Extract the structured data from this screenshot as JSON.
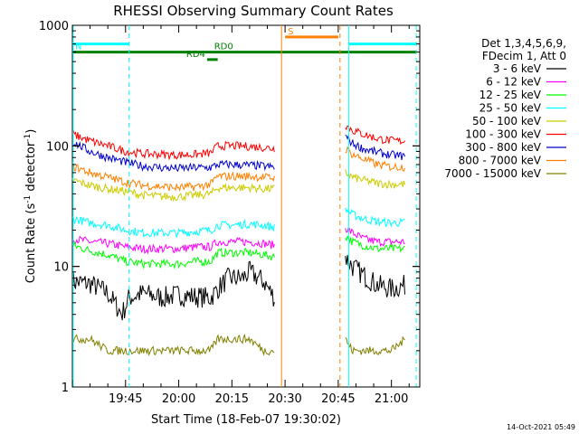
{
  "chart_data": {
    "type": "line",
    "title": "RHESSI Observing Summary Count Rates",
    "xlabel": "Start Time (18-Feb-07 19:30:02)",
    "ylabel_main": "Count Rate (s",
    "ylabel_sup1": "-1",
    "ylabel_mid": " detector",
    "ylabel_sup2": "-1",
    "ylabel_end": ")",
    "y_scale": "log",
    "ylim": [
      1,
      1000
    ],
    "xlim_minutes": [
      1170,
      1268
    ],
    "x_ticks": [
      {
        "label": "19:45",
        "minute": 1185
      },
      {
        "label": "20:00",
        "minute": 1200
      },
      {
        "label": "20:15",
        "minute": 1215
      },
      {
        "label": "20:30",
        "minute": 1230
      },
      {
        "label": "20:45",
        "minute": 1245
      },
      {
        "label": "21:00",
        "minute": 1260
      }
    ],
    "y_ticks": [
      {
        "label": "1",
        "value": 1
      },
      {
        "label": "10",
        "value": 10
      },
      {
        "label": "100",
        "value": 100
      },
      {
        "label": "1000",
        "value": 1000
      }
    ],
    "legend_header": [
      "Det 1,3,4,5,6,9,",
      "FDecim 1, Att 0"
    ],
    "legend_placement": "right",
    "timestamp": "14-Oct-2021 05:49",
    "gap_minutes": [
      1229,
      1246
    ],
    "series": [
      {
        "name": "3 - 6 keV",
        "color": "#000000",
        "pre": [
          [
            1170,
            7.5
          ],
          [
            1175,
            7.2
          ],
          [
            1180,
            6
          ],
          [
            1184,
            4
          ],
          [
            1186,
            5.5
          ],
          [
            1190,
            6
          ],
          [
            1195,
            5.5
          ],
          [
            1200,
            5.8
          ],
          [
            1205,
            5.6
          ],
          [
            1209,
            5.5
          ],
          [
            1211,
            6.5
          ],
          [
            1214,
            8
          ],
          [
            1218,
            8
          ],
          [
            1220,
            9
          ],
          [
            1224,
            7.5
          ],
          [
            1227,
            5.5
          ]
        ],
        "post": [
          [
            1247,
            12
          ],
          [
            1249,
            10
          ],
          [
            1252,
            8.5
          ],
          [
            1256,
            7
          ],
          [
            1260,
            6.5
          ],
          [
            1264,
            7
          ]
        ]
      },
      {
        "name": "6 - 12 keV",
        "color": "#ff00ff",
        "pre": [
          [
            1170,
            17
          ],
          [
            1175,
            16
          ],
          [
            1180,
            15.5
          ],
          [
            1185,
            14.5
          ],
          [
            1190,
            14
          ],
          [
            1195,
            14
          ],
          [
            1200,
            14
          ],
          [
            1205,
            14.5
          ],
          [
            1209,
            14.5
          ],
          [
            1211,
            16
          ],
          [
            1215,
            16
          ],
          [
            1220,
            16
          ],
          [
            1224,
            15.5
          ],
          [
            1227,
            15
          ]
        ],
        "post": [
          [
            1247,
            21
          ],
          [
            1249,
            19
          ],
          [
            1252,
            17
          ],
          [
            1256,
            16
          ],
          [
            1260,
            16
          ],
          [
            1264,
            16
          ]
        ]
      },
      {
        "name": "12 - 25 keV",
        "color": "#00ff00",
        "pre": [
          [
            1170,
            15
          ],
          [
            1175,
            13.5
          ],
          [
            1180,
            12.5
          ],
          [
            1185,
            11
          ],
          [
            1190,
            10.5
          ],
          [
            1195,
            10.5
          ],
          [
            1200,
            10.5
          ],
          [
            1205,
            11
          ],
          [
            1209,
            11
          ],
          [
            1211,
            13
          ],
          [
            1215,
            13
          ],
          [
            1220,
            13
          ],
          [
            1224,
            12.5
          ],
          [
            1227,
            12
          ]
        ],
        "post": [
          [
            1247,
            18
          ],
          [
            1249,
            16
          ],
          [
            1252,
            15
          ],
          [
            1256,
            14
          ],
          [
            1260,
            14
          ],
          [
            1264,
            14
          ]
        ]
      },
      {
        "name": "25 - 50 keV",
        "color": "#00ffff",
        "pre": [
          [
            1170,
            25
          ],
          [
            1175,
            23
          ],
          [
            1180,
            22
          ],
          [
            1185,
            20
          ],
          [
            1190,
            19
          ],
          [
            1195,
            19
          ],
          [
            1200,
            19
          ],
          [
            1205,
            19.5
          ],
          [
            1209,
            20
          ],
          [
            1211,
            22
          ],
          [
            1215,
            22
          ],
          [
            1220,
            22.5
          ],
          [
            1224,
            22
          ],
          [
            1227,
            21
          ]
        ],
        "post": [
          [
            1247,
            30
          ],
          [
            1249,
            27
          ],
          [
            1252,
            25
          ],
          [
            1256,
            23.5
          ],
          [
            1260,
            23
          ],
          [
            1264,
            23
          ]
        ]
      },
      {
        "name": "50 - 100 keV",
        "color": "#cccc00",
        "pre": [
          [
            1170,
            52
          ],
          [
            1175,
            47
          ],
          [
            1180,
            44
          ],
          [
            1185,
            42
          ],
          [
            1190,
            39
          ],
          [
            1195,
            38
          ],
          [
            1200,
            38
          ],
          [
            1205,
            39
          ],
          [
            1209,
            40
          ],
          [
            1211,
            45
          ],
          [
            1215,
            45
          ],
          [
            1220,
            45
          ],
          [
            1224,
            44
          ],
          [
            1227,
            44
          ]
        ],
        "post": [
          [
            1247,
            60
          ],
          [
            1249,
            55
          ],
          [
            1252,
            52
          ],
          [
            1256,
            49
          ],
          [
            1260,
            48
          ],
          [
            1264,
            48
          ]
        ]
      },
      {
        "name": "100 - 300 keV",
        "color": "#ff0000",
        "pre": [
          [
            1170,
            125
          ],
          [
            1175,
            110
          ],
          [
            1180,
            100
          ],
          [
            1185,
            90
          ],
          [
            1190,
            86
          ],
          [
            1195,
            85
          ],
          [
            1200,
            84
          ],
          [
            1205,
            85
          ],
          [
            1209,
            87
          ],
          [
            1211,
            100
          ],
          [
            1215,
            100
          ],
          [
            1220,
            99
          ],
          [
            1224,
            97
          ],
          [
            1227,
            95
          ]
        ],
        "post": [
          [
            1247,
            150
          ],
          [
            1249,
            135
          ],
          [
            1252,
            125
          ],
          [
            1256,
            115
          ],
          [
            1260,
            110
          ],
          [
            1264,
            110
          ]
        ]
      },
      {
        "name": "300 - 800 keV",
        "color": "#0000cc",
        "pre": [
          [
            1170,
            108
          ],
          [
            1175,
            90
          ],
          [
            1180,
            80
          ],
          [
            1185,
            73
          ],
          [
            1190,
            68
          ],
          [
            1195,
            66
          ],
          [
            1200,
            65
          ],
          [
            1205,
            66
          ],
          [
            1209,
            66
          ],
          [
            1211,
            70
          ],
          [
            1215,
            70
          ],
          [
            1220,
            69
          ],
          [
            1224,
            68
          ],
          [
            1227,
            66
          ]
        ],
        "post": [
          [
            1247,
            120
          ],
          [
            1249,
            105
          ],
          [
            1252,
            95
          ],
          [
            1256,
            88
          ],
          [
            1260,
            84
          ],
          [
            1264,
            82
          ]
        ]
      },
      {
        "name": "800 - 7000 keV",
        "color": "#ff8000",
        "pre": [
          [
            1170,
            68
          ],
          [
            1175,
            60
          ],
          [
            1180,
            55
          ],
          [
            1185,
            50
          ],
          [
            1190,
            47
          ],
          [
            1195,
            46
          ],
          [
            1200,
            45
          ],
          [
            1205,
            46
          ],
          [
            1209,
            48
          ],
          [
            1211,
            56
          ],
          [
            1215,
            56
          ],
          [
            1220,
            56
          ],
          [
            1224,
            55
          ],
          [
            1227,
            54
          ]
        ],
        "post": [
          [
            1247,
            95
          ],
          [
            1249,
            85
          ],
          [
            1252,
            78
          ],
          [
            1256,
            70
          ],
          [
            1260,
            67
          ],
          [
            1264,
            67
          ]
        ]
      },
      {
        "name": "7000 - 15000 keV",
        "color": "#808000",
        "pre": [
          [
            1170,
            2.5
          ],
          [
            1175,
            2.5
          ],
          [
            1180,
            2
          ],
          [
            1185,
            2
          ],
          [
            1190,
            2
          ],
          [
            1195,
            2
          ],
          [
            1200,
            2
          ],
          [
            1205,
            2
          ],
          [
            1209,
            2
          ],
          [
            1211,
            2.5
          ],
          [
            1215,
            2.5
          ],
          [
            1220,
            2.5
          ],
          [
            1224,
            2
          ],
          [
            1227,
            2
          ]
        ],
        "post": [
          [
            1247,
            2.5
          ],
          [
            1249,
            2
          ],
          [
            1252,
            2
          ],
          [
            1256,
            2
          ],
          [
            1260,
            2
          ],
          [
            1264,
            2.5
          ]
        ]
      }
    ],
    "flag_bars": [
      {
        "label": "N",
        "color": "#00ffff",
        "value": 700,
        "segments": [
          [
            1170,
            1186
          ],
          [
            1248,
            1267
          ]
        ]
      },
      {
        "label": "S",
        "color": "#ff8000",
        "value": 800,
        "segments": [
          [
            1230,
            1245
          ]
        ]
      },
      {
        "label": "RD0",
        "color": "#008000",
        "value": 600,
        "segments": [
          [
            1170,
            1267
          ]
        ]
      },
      {
        "label": "RD4",
        "color": "#008000",
        "value": 520,
        "segments": [
          [
            1208,
            1211
          ]
        ]
      }
    ],
    "vertical_lines": [
      {
        "minute": 1170.2,
        "color": "#00ffff",
        "style": "solid"
      },
      {
        "minute": 1186,
        "color": "#00ffff",
        "style": "dashed"
      },
      {
        "minute": 1229,
        "color": "#ff8000",
        "style": "solid"
      },
      {
        "minute": 1245.5,
        "color": "#ff8000",
        "style": "dashed"
      },
      {
        "minute": 1248,
        "color": "#00ffff",
        "style": "solid"
      },
      {
        "minute": 1267,
        "color": "#00ffff",
        "style": "dashed"
      }
    ]
  }
}
